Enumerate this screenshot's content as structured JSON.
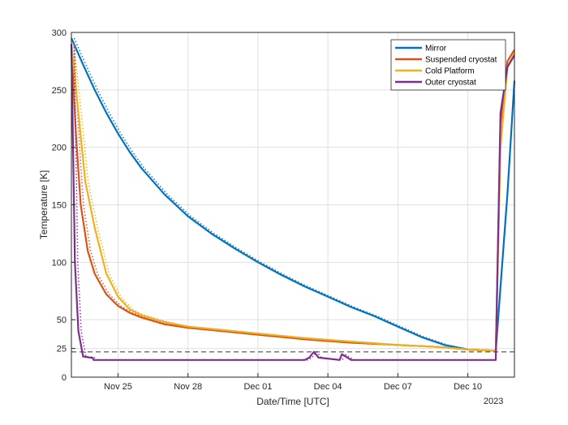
{
  "chart_data": {
    "type": "line",
    "title": "",
    "xlabel": "Date/Time [UTC]",
    "ylabel": "Temperature [K]",
    "ylim": [
      0,
      300
    ],
    "xlim": [
      "Nov 23",
      "Dec 12"
    ],
    "grid": true,
    "legend_position": "top-right",
    "year_label": "2023",
    "x_ticks": [
      "Nov 25",
      "Nov 28",
      "Dec 01",
      "Dec 04",
      "Dec 07",
      "Dec 10"
    ],
    "x_tick_values": [
      2,
      5,
      8,
      11,
      14,
      17
    ],
    "y_ticks": [
      0,
      25,
      50,
      100,
      150,
      200,
      250,
      300
    ],
    "reference_line": {
      "y": 22,
      "style": "dashed"
    },
    "series": [
      {
        "name": "Mirror",
        "color": "#0072BD",
        "x": [
          0,
          0.5,
          1,
          1.5,
          2,
          2.5,
          3,
          4,
          5,
          6,
          7,
          8,
          9,
          10,
          11,
          12,
          13,
          14,
          15,
          16,
          17,
          18.2,
          18.7,
          19
        ],
        "values": [
          295,
          272,
          250,
          230,
          212,
          196,
          182,
          159,
          140,
          125,
          112,
          100,
          89,
          79,
          70,
          61,
          53,
          44,
          35,
          28,
          24,
          23,
          160,
          258
        ]
      },
      {
        "name": "Suspended cryostat",
        "color": "#D95319",
        "x": [
          0,
          0.2,
          0.4,
          0.7,
          1,
          1.5,
          2,
          2.5,
          3,
          4,
          5,
          6,
          8,
          10,
          12,
          14,
          16,
          17,
          18.2,
          18.4,
          18.7,
          19
        ],
        "values": [
          288,
          210,
          150,
          110,
          90,
          72,
          62,
          56,
          52,
          46,
          43,
          41,
          37,
          33,
          30,
          28,
          26,
          24,
          23,
          220,
          275,
          285
        ]
      },
      {
        "name": "Cold Platform",
        "color": "#EDB120",
        "x": [
          0,
          0.3,
          0.6,
          1,
          1.5,
          2,
          2.5,
          3,
          4,
          5,
          6,
          8,
          10,
          12,
          14,
          16,
          17,
          18.2,
          18.4,
          18.7,
          19
        ],
        "values": [
          290,
          230,
          170,
          130,
          90,
          70,
          59,
          54,
          48,
          44,
          42,
          38,
          34,
          31,
          28,
          26,
          24,
          23,
          200,
          270,
          282
        ]
      },
      {
        "name": "Outer cryostat",
        "color": "#7E2F8E",
        "x": [
          0,
          0.15,
          0.3,
          0.5,
          0.8,
          0.9,
          0.95,
          1,
          2,
          4,
          7,
          10,
          10.2,
          10.4,
          10.6,
          11.5,
          11.6,
          12,
          16,
          18.1,
          18.2,
          18.4,
          18.7,
          19
        ],
        "values": [
          290,
          100,
          40,
          18,
          17,
          17,
          15,
          15,
          15,
          15,
          15,
          15,
          17,
          22,
          17,
          15,
          20,
          15,
          15,
          15,
          15,
          230,
          270,
          280
        ]
      }
    ]
  }
}
